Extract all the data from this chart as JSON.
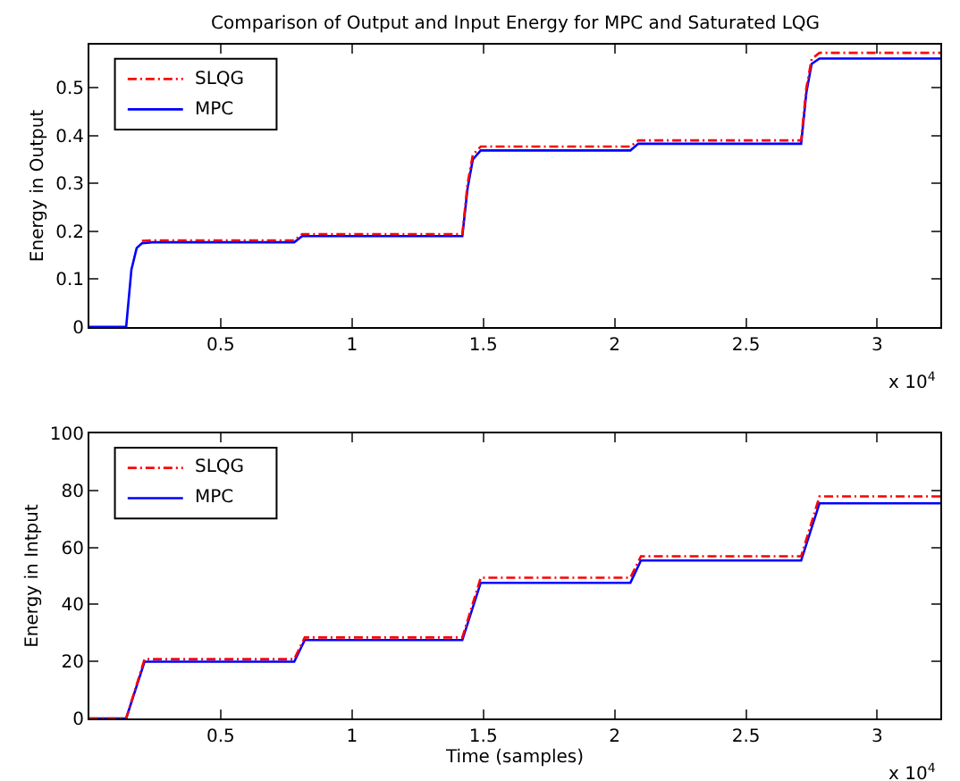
{
  "chart_data": [
    {
      "type": "line",
      "title": "Comparison of Output and Input Energy for MPC and Saturated LQG",
      "ylabel": "Energy in Output",
      "annotations": [
        "x 10$^{4}$"
      ],
      "xlim": [
        0,
        3.24
      ],
      "xticks": [
        0.5,
        1,
        1.5,
        2,
        2.5,
        3
      ],
      "ylim": [
        0,
        0.59
      ],
      "yticks": [
        0,
        0.1,
        0.2,
        0.3,
        0.4,
        0.5
      ],
      "legend": "top left",
      "series": [
        {
          "name": "SLQG",
          "color": "#ff0000",
          "line_style": "dashed",
          "x": [
            0.2,
            0.24,
            0.78,
            0.81,
            1.42,
            1.44,
            1.46,
            1.49,
            2.06,
            2.09,
            2.71,
            2.73,
            2.75,
            2.78,
            3.24
          ],
          "values": [
            0.18,
            0.181,
            0.181,
            0.194,
            0.194,
            0.3,
            0.36,
            0.377,
            0.377,
            0.39,
            0.39,
            0.5,
            0.56,
            0.573,
            0.573
          ]
        },
        {
          "name": "MPC",
          "color": "#0000ff",
          "line_style": "solid",
          "x": [
            0,
            0.14,
            0.16,
            0.18,
            0.2,
            0.24,
            0.78,
            0.81,
            1.42,
            1.44,
            1.46,
            1.49,
            2.06,
            2.09,
            2.71,
            2.73,
            2.75,
            2.78,
            3.24
          ],
          "values": [
            0,
            0,
            0.12,
            0.165,
            0.175,
            0.177,
            0.177,
            0.19,
            0.19,
            0.29,
            0.35,
            0.369,
            0.369,
            0.383,
            0.383,
            0.49,
            0.55,
            0.561,
            0.561
          ]
        }
      ]
    },
    {
      "type": "line",
      "xlabel": "Time (samples)",
      "ylabel": "Energy in Intput",
      "annotations": [
        "x 10$^{4}$"
      ],
      "xlim": [
        0,
        3.24
      ],
      "xticks": [
        0.5,
        1,
        1.5,
        2,
        2.5,
        3
      ],
      "ylim": [
        0,
        100
      ],
      "yticks": [
        0,
        20,
        40,
        60,
        80,
        100
      ],
      "legend": "top left",
      "series": [
        {
          "name": "SLQG",
          "color": "#ff0000",
          "line_style": "dashed",
          "x": [
            0,
            0.14,
            0.21,
            0.78,
            0.82,
            1.42,
            1.49,
            2.06,
            2.1,
            2.71,
            2.78,
            3.24
          ],
          "values": [
            0,
            0,
            20.8,
            20.8,
            28.4,
            28.4,
            49.4,
            49.4,
            56.9,
            56.9,
            77.9,
            77.9
          ]
        },
        {
          "name": "MPC",
          "color": "#0000ff",
          "line_style": "solid",
          "x": [
            0,
            0.14,
            0.21,
            0.78,
            0.82,
            1.42,
            1.49,
            2.06,
            2.1,
            2.71,
            2.78,
            3.24
          ],
          "values": [
            0,
            0,
            19.9,
            19.9,
            27.5,
            27.5,
            47.6,
            47.6,
            55.4,
            55.4,
            75.5,
            75.5
          ]
        }
      ]
    }
  ]
}
